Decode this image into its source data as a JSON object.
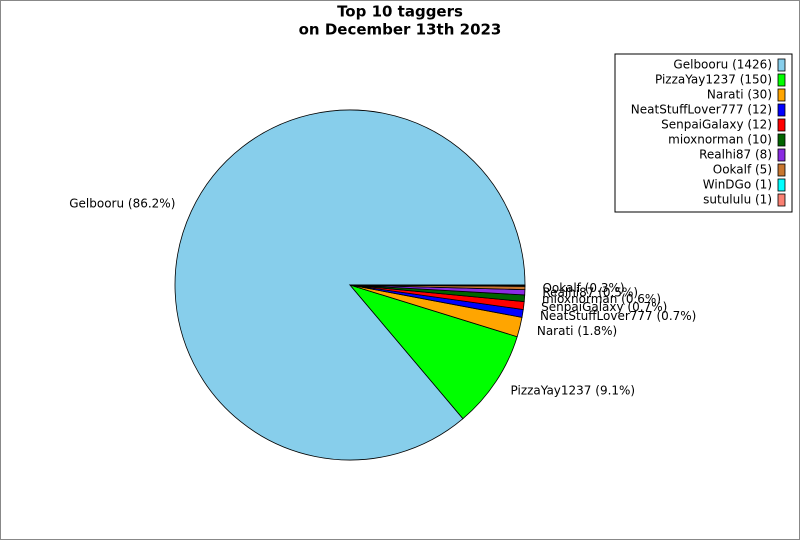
{
  "chart_data": {
    "type": "pie",
    "title": [
      "Top 10 taggers",
      "on December 13th 2023"
    ],
    "categories": [
      "Gelbooru (1426)",
      "PizzaYay1237 (150)",
      "Narati (30)",
      "NeatStuffLover777 (12)",
      "SenpaiGalaxy (12)",
      "mioxnorman (10)",
      "Realhi87 (8)",
      "Ookalf (5)",
      "WinDGo (1)",
      "sutululu (1)"
    ],
    "values": [
      1426,
      150,
      30,
      12,
      12,
      10,
      8,
      5,
      1,
      1
    ],
    "value_labels": [
      "Gelbooru (86.2%)",
      "PizzaYay1237 (9.1%)",
      "Narati (1.8%)",
      "NeatStuffLover777 (0.7%)",
      "SenpaiGalaxy (0.7%)",
      "mioxnorman (0.6%)",
      "Realhi87 (0.5%)",
      "Ookalf (0.3%)",
      null,
      null
    ],
    "colors": [
      "#87ceeb",
      "#00ff00",
      "#ffa500",
      "#0000ff",
      "#ff0000",
      "#006400",
      "#8a2be2",
      "#c8762f",
      "#00ffff",
      "#fa8072"
    ],
    "legend": "upper right"
  }
}
